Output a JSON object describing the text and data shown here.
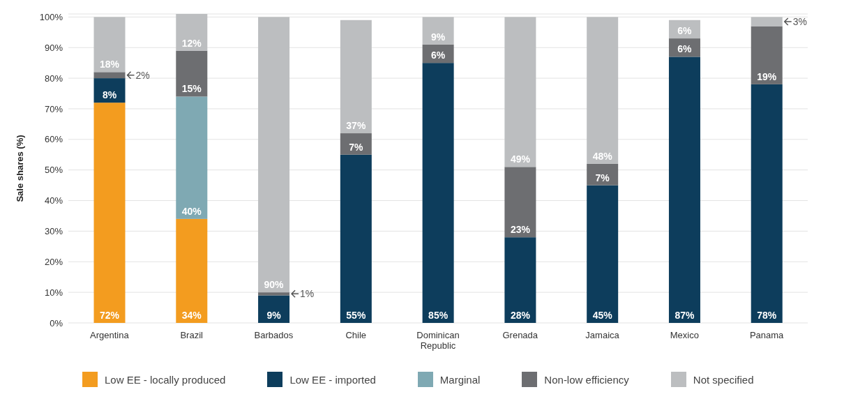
{
  "chart_data": {
    "type": "bar",
    "stacked": true,
    "ylabel": "Sale shares (%)",
    "categories": [
      "Argentina",
      "Brazil",
      "Barbados",
      "Chile",
      "Dominican Republic",
      "Grenada",
      "Jamaica",
      "Mexico",
      "Panama"
    ],
    "series": [
      {
        "name": "Low EE - locally produced",
        "color": "#f39c1f",
        "values": [
          72,
          34,
          null,
          null,
          null,
          null,
          null,
          null,
          null
        ],
        "value_labels": [
          "72%",
          "34%",
          null,
          null,
          null,
          null,
          null,
          null,
          null
        ]
      },
      {
        "name": "Low EE - imported",
        "color": "#0d3d5c",
        "values": [
          8,
          null,
          9,
          55,
          85,
          28,
          45,
          87,
          78
        ],
        "value_labels": [
          "8%",
          null,
          "9%",
          "55%",
          "85%",
          "28%",
          "45%",
          "87%",
          "78%"
        ]
      },
      {
        "name": "Marginal",
        "color": "#7fa9b3",
        "values": [
          null,
          40,
          null,
          null,
          null,
          null,
          null,
          null,
          null
        ],
        "value_labels": [
          null,
          "40%",
          null,
          null,
          null,
          null,
          null,
          null,
          null
        ]
      },
      {
        "name": "Non-low efficiency",
        "color": "#6d6e71",
        "values": [
          2,
          15,
          1,
          7,
          6,
          23,
          7,
          6,
          19
        ],
        "value_labels": [
          "2%",
          "15%",
          "1%",
          "7%",
          "6%",
          "23%",
          "7%",
          "6%",
          "19%"
        ]
      },
      {
        "name": "Not specified",
        "color": "#bcbec0",
        "values": [
          18,
          12,
          90,
          37,
          9,
          49,
          48,
          6,
          3
        ],
        "value_labels": [
          "18%",
          "12%",
          "90%",
          "37%",
          "9%",
          "49%",
          "48%",
          "6%",
          "3%"
        ]
      }
    ],
    "ylim": [
      0,
      101
    ],
    "yticks": [
      {
        "value": 0,
        "label": "0%"
      },
      {
        "value": 10,
        "label": "10%"
      },
      {
        "value": 20,
        "label": "20%"
      },
      {
        "value": 30,
        "label": "30%"
      },
      {
        "value": 40,
        "label": "40%"
      },
      {
        "value": 50,
        "label": "50%"
      },
      {
        "value": 60,
        "label": "60%"
      },
      {
        "value": 70,
        "label": "70%"
      },
      {
        "value": 80,
        "label": "80%"
      },
      {
        "value": 90,
        "label": "90%"
      },
      {
        "value": 100,
        "label": "100%"
      }
    ],
    "grid": "y",
    "legend": "bottom"
  }
}
